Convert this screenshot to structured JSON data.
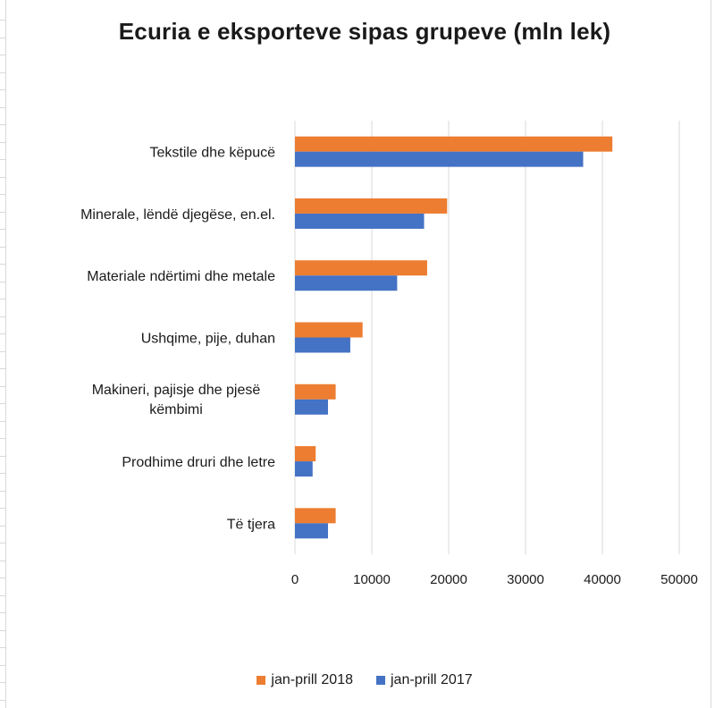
{
  "chart_data": {
    "type": "bar",
    "orientation": "horizontal",
    "title": "Ecuria e eksporteve sipas grupeve (mln lek)",
    "categories": [
      "Tekstile dhe këpucë",
      "Minerale, lëndë djegëse, en.el.",
      "Materiale ndërtimi dhe metale",
      "Ushqime, pije, duhan",
      "Makineri, pajisje dhe pjesë këmbimi",
      "Prodhime druri dhe letre",
      "Të tjera"
    ],
    "series": [
      {
        "name": "jan-prill 2018",
        "color": "#ED7D31",
        "values": [
          41300,
          19800,
          17200,
          8800,
          5300,
          2700,
          5300
        ]
      },
      {
        "name": "jan-prill 2017",
        "color": "#4472C4",
        "values": [
          37500,
          16800,
          13300,
          7200,
          4300,
          2300,
          4300
        ]
      }
    ],
    "xlim": [
      0,
      50000
    ],
    "xticks": [
      "0",
      "10000",
      "20000",
      "30000",
      "40000",
      "50000"
    ],
    "xlabel": "",
    "ylabel": "",
    "grid": true,
    "legend_position": "bottom"
  }
}
